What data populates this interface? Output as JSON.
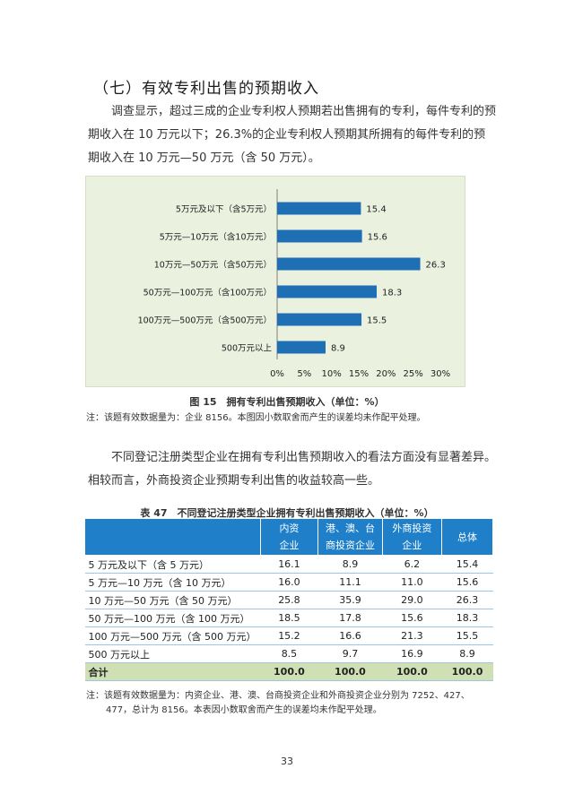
{
  "section_heading": "（七）有效专利出售的预期收入",
  "paragraph1": "调查显示，超过三成的企业专利权人预期若出售拥有的专利，每件专利的预期收入在 10 万元以下；26.3%的企业专利权人预期其所拥有的每件专利的预期收入在 10 万元—50 万元（含 50 万元）。",
  "chart_data": {
    "type": "bar",
    "orientation": "horizontal",
    "categories": [
      "5万元及以下（含5万元）",
      "5万元—10万元（含10万元）",
      "10万元—50万元（含50万元）",
      "50万元—100万元（含100万元）",
      "100万元—500万元（含500万元）",
      "500万元以上"
    ],
    "values": [
      15.4,
      15.6,
      26.3,
      18.3,
      15.5,
      8.9
    ],
    "value_labels": [
      "15.4",
      "15.6",
      "26.3",
      "18.3",
      "15.5",
      "8.9"
    ],
    "xlim": [
      0,
      30
    ],
    "x_ticks": [
      "0%",
      "5%",
      "10%",
      "15%",
      "20%",
      "25%",
      "30%"
    ],
    "bar_color": "#1f6fb5",
    "background_color": "#eaf1df",
    "grid": false
  },
  "figure_caption": "图 15　拥有专利出售预期收入（单位：%）",
  "figure_note": "注：该题有效数据量为：企业 8156。本图因小数取舍而产生的误差均未作配平处理。",
  "paragraph2": "不同登记注册类型企业在拥有专利出售预期收入的看法方面没有显著差异。相较而言，外商投资企业预期专利出售的收益较高一些。",
  "table_caption": "表 47　不同登记注册类型企业拥有专利出售预期收入（单位：%）",
  "table": {
    "headers": [
      "",
      "内资\n企业",
      "港、澳、台\n商投资企业",
      "外商投资\n企业",
      "总体"
    ],
    "rows": [
      {
        "label": "5 万元及以下（含 5 万元）",
        "cells": [
          "16.1",
          "8.9",
          "6.2",
          "15.4"
        ]
      },
      {
        "label": "5 万元—10 万元（含 10 万元）",
        "cells": [
          "16.0",
          "11.1",
          "11.0",
          "15.6"
        ]
      },
      {
        "label": "10 万元—50 万元（含 50 万元）",
        "cells": [
          "25.8",
          "35.9",
          "29.0",
          "26.3"
        ]
      },
      {
        "label": "50 万元—100 万元（含 100 万元）",
        "cells": [
          "18.5",
          "17.8",
          "15.6",
          "18.3"
        ]
      },
      {
        "label": "100 万元—500 万元（含 500 万元）",
        "cells": [
          "15.2",
          "16.6",
          "21.3",
          "15.5"
        ]
      },
      {
        "label": "500 万元以上",
        "cells": [
          "8.5",
          "9.7",
          "16.9",
          "8.9"
        ]
      }
    ],
    "total_row": {
      "label": "合计",
      "cells": [
        "100.0",
        "100.0",
        "100.0",
        "100.0"
      ]
    },
    "header_color": "#1f7fc9",
    "total_color": "#cfe0b4"
  },
  "table_note_line1": "注：该题有效数据量为：内资企业、港、澳、台商投资企业和外商投资企业分别为 7252、427、",
  "table_note_line2": "477，总计为 8156。本表因小数取舍而产生的误差均未作配平处理。",
  "page_number": "33"
}
